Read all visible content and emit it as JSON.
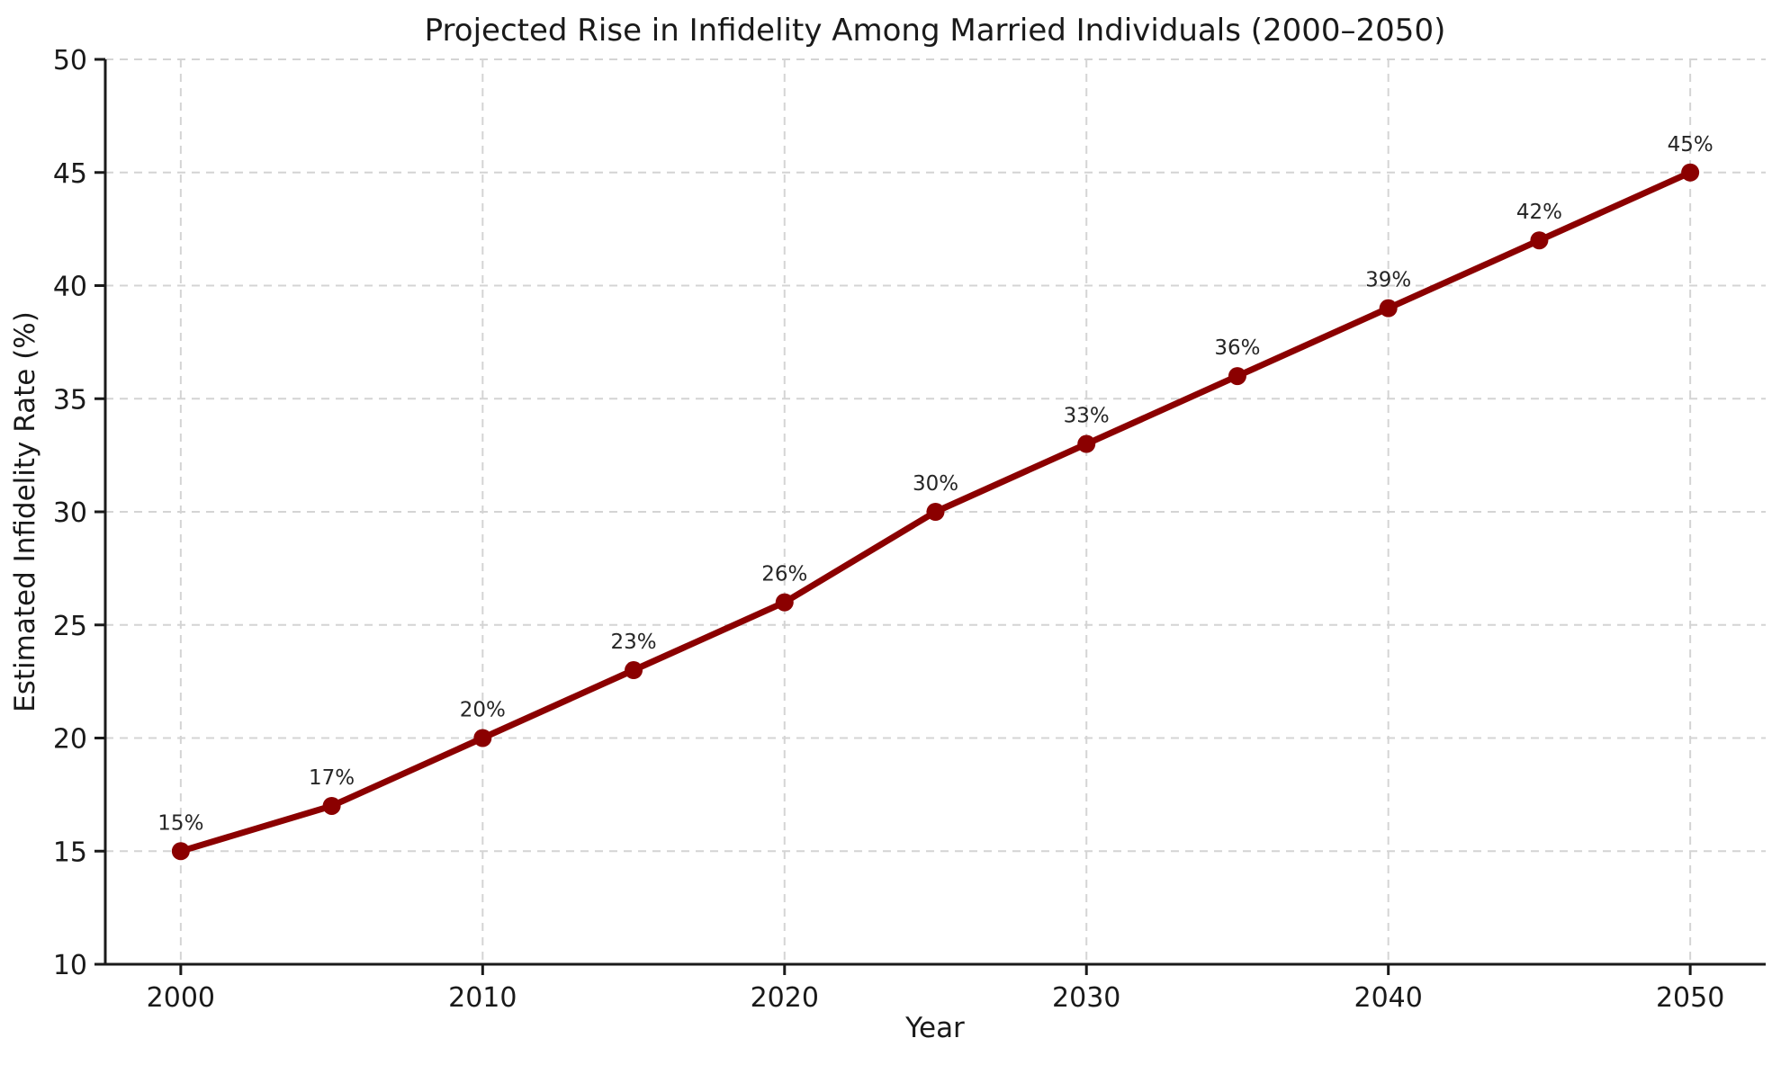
{
  "figure": {
    "background": "#ffffff"
  },
  "chart_data": {
    "type": "line",
    "title": "Projected Rise in Infidelity Among Married Individuals (2000–2050)",
    "xlabel": "Year",
    "ylabel": "Estimated Infidelity Rate (%)",
    "x": [
      2000,
      2005,
      2010,
      2015,
      2020,
      2025,
      2030,
      2035,
      2040,
      2045,
      2050
    ],
    "values": [
      15,
      17,
      20,
      23,
      26,
      30,
      33,
      36,
      39,
      42,
      45
    ],
    "point_labels": [
      "15%",
      "17%",
      "20%",
      "23%",
      "26%",
      "30%",
      "33%",
      "36%",
      "39%",
      "42%",
      "45%"
    ],
    "xlim": [
      1997.5,
      2052.5
    ],
    "ylim": [
      10,
      50
    ],
    "xticks": [
      2000,
      2010,
      2020,
      2030,
      2040,
      2050
    ],
    "yticks": [
      10,
      15,
      20,
      25,
      30,
      35,
      40,
      45,
      50
    ],
    "grid": true,
    "grid_style": "dashed",
    "legend": "none",
    "line_color": "#8b0000",
    "marker_color": "#8b0000",
    "grid_color": "#d4d4d4",
    "axis_color": "#1a1a1a",
    "point_label_color": "#262626"
  }
}
